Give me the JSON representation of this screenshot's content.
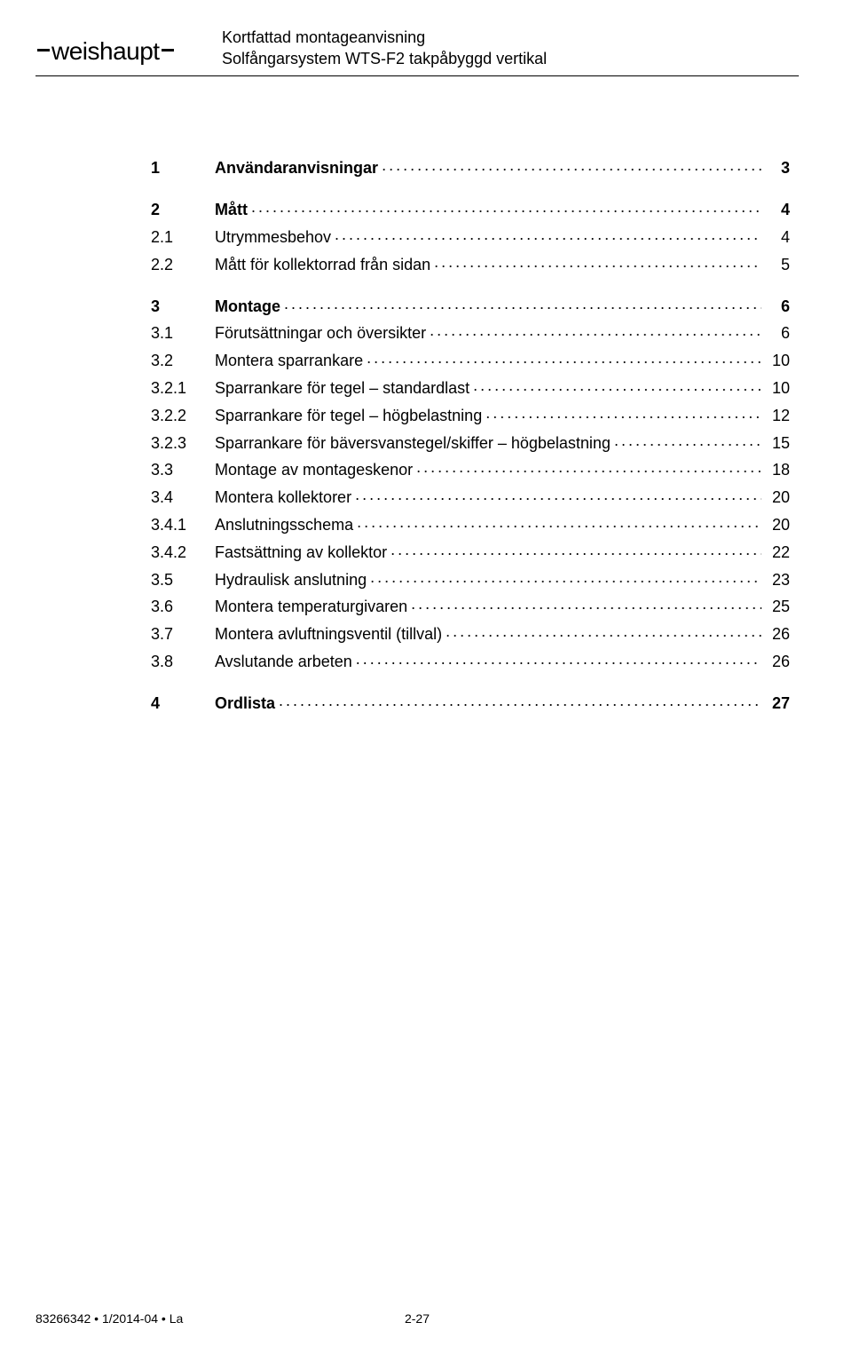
{
  "header": {
    "logo_text": "weishaupt",
    "line1": "Kortfattad montageanvisning",
    "line2": "Solfångarsystem WTS-F2 takpåbyggd vertikal"
  },
  "toc": [
    {
      "num": "1",
      "title": "Användaranvisningar",
      "page": "3",
      "bold": true,
      "spaced": false
    },
    {
      "num": "2",
      "title": "Mått",
      "page": "4",
      "bold": true,
      "spaced": true
    },
    {
      "num": "2.1",
      "title": "Utrymmesbehov",
      "page": "4",
      "bold": false,
      "spaced": false
    },
    {
      "num": "2.2",
      "title": "Mått för kollektorrad från sidan",
      "page": "5",
      "bold": false,
      "spaced": false
    },
    {
      "num": "3",
      "title": "Montage",
      "page": "6",
      "bold": true,
      "spaced": true
    },
    {
      "num": "3.1",
      "title": "Förutsättningar och översikter",
      "page": "6",
      "bold": false,
      "spaced": false
    },
    {
      "num": "3.2",
      "title": "Montera sparrankare",
      "page": "10",
      "bold": false,
      "spaced": false
    },
    {
      "num": "3.2.1",
      "title": "Sparrankare för tegel – standardlast",
      "page": "10",
      "bold": false,
      "spaced": false
    },
    {
      "num": "3.2.2",
      "title": "Sparrankare för tegel – högbelastning",
      "page": "12",
      "bold": false,
      "spaced": false
    },
    {
      "num": "3.2.3",
      "title": "Sparrankare för bäversvanstegel/skiffer – högbelastning",
      "page": "15",
      "bold": false,
      "spaced": false
    },
    {
      "num": "3.3",
      "title": "Montage av montageskenor",
      "page": "18",
      "bold": false,
      "spaced": false
    },
    {
      "num": "3.4",
      "title": "Montera kollektorer",
      "page": "20",
      "bold": false,
      "spaced": false
    },
    {
      "num": "3.4.1",
      "title": "Anslutningsschema",
      "page": "20",
      "bold": false,
      "spaced": false
    },
    {
      "num": "3.4.2",
      "title": "Fastsättning av kollektor",
      "page": "22",
      "bold": false,
      "spaced": false
    },
    {
      "num": "3.5",
      "title": "Hydraulisk anslutning",
      "page": "23",
      "bold": false,
      "spaced": false
    },
    {
      "num": "3.6",
      "title": "Montera temperaturgivaren",
      "page": "25",
      "bold": false,
      "spaced": false
    },
    {
      "num": "3.7",
      "title": "Montera avluftningsventil (tillval)",
      "page": "26",
      "bold": false,
      "spaced": false
    },
    {
      "num": "3.8",
      "title": "Avslutande arbeten",
      "page": "26",
      "bold": false,
      "spaced": false
    },
    {
      "num": "4",
      "title": "Ordlista",
      "page": "27",
      "bold": true,
      "spaced": true
    }
  ],
  "footer": {
    "left": "83266342 • 1/2014-04 • La",
    "center": "2-27"
  }
}
